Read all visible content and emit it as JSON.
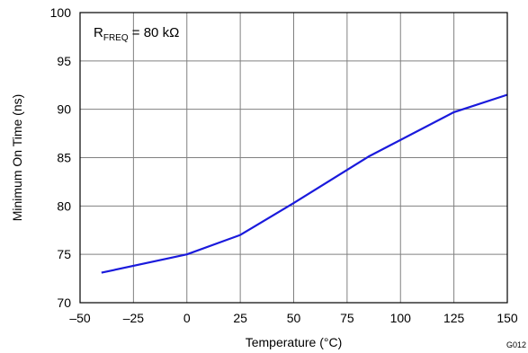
{
  "chart_data": {
    "type": "line",
    "xlabel": "Temperature (°C)",
    "ylabel": "Minimum On Time (ns)",
    "xlim": [
      -50,
      150
    ],
    "ylim": [
      70,
      100
    ],
    "xticks": [
      -50,
      -25,
      0,
      25,
      50,
      75,
      100,
      125,
      150
    ],
    "yticks": [
      70,
      75,
      80,
      85,
      90,
      95,
      100
    ],
    "xtick_labels": [
      "–50",
      "–25",
      "0",
      "25",
      "50",
      "75",
      "100",
      "125",
      "150"
    ],
    "ytick_labels": [
      "70",
      "75",
      "80",
      "85",
      "90",
      "95",
      "100"
    ],
    "grid": true,
    "annotation": {
      "prefix": "R",
      "subscript": "FREQ",
      "suffix": " = 80 kΩ"
    },
    "figure_code": "G012",
    "series": [
      {
        "color": "#1a1adc",
        "x": [
          -40,
          0,
          25,
          50,
          85,
          125,
          150
        ],
        "y": [
          73.1,
          75.0,
          77.0,
          80.3,
          85.1,
          89.7,
          91.5
        ]
      }
    ]
  }
}
